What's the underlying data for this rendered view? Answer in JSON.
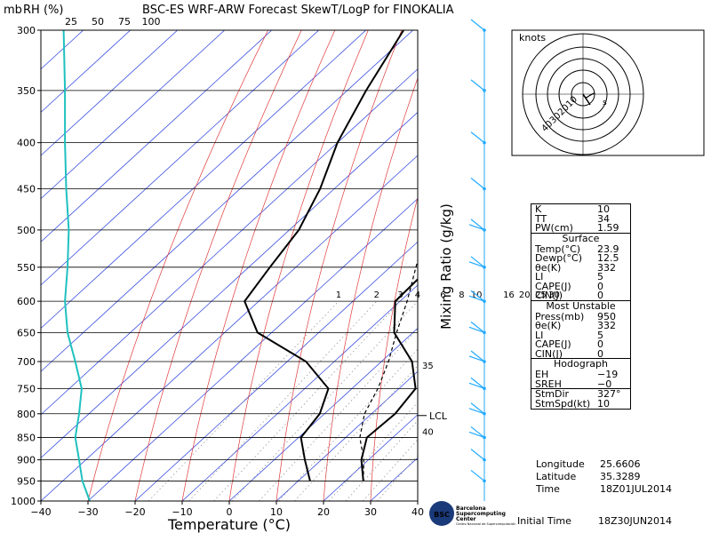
{
  "header": {
    "title": "BSC-ES WRF-ARW Forecast SkewT/LogP for FINOKALIA",
    "left_labels": [
      "mb",
      "RH (%)"
    ],
    "rh_ticks": [
      "25",
      "50",
      "75",
      "100"
    ]
  },
  "chart_data": {
    "type": "line",
    "title": "BSC-ES WRF-ARW Forecast SkewT/LogP for FINOKALIA",
    "xlabel": "Temperature (°C)",
    "ylabel": "mb",
    "xlim": [
      -40,
      40
    ],
    "ylim": [
      1000,
      300
    ],
    "x_ticks": [
      "-40",
      "-30",
      "-20",
      "-10",
      "0",
      "10",
      "20",
      "30",
      "40"
    ],
    "p_ticks": [
      "300",
      "350",
      "400",
      "450",
      "500",
      "550",
      "600",
      "650",
      "700",
      "750",
      "800",
      "850",
      "900",
      "950",
      "1000"
    ],
    "mixing_ratio_label": "Mixing Ratio (g/kg)",
    "mixing_ratio_labels": [
      "1",
      "2",
      "3",
      "4",
      "6",
      "8",
      "10",
      "16",
      "20",
      "25",
      "30"
    ],
    "lcl_label": "LCL",
    "theta_labels": [
      "35",
      "40"
    ],
    "series": [
      {
        "name": "Temperature",
        "color": "#000000",
        "p": [
          950,
          900,
          850,
          800,
          750,
          700,
          650,
          600,
          550,
          500,
          450,
          400,
          350,
          300
        ],
        "t": [
          23.8,
          18.5,
          14.5,
          15.0,
          13.5,
          6.5,
          -4.0,
          -11.0,
          -11.5,
          -13.5,
          -20.0,
          -29.0,
          -38.0,
          -45.5
        ]
      },
      {
        "name": "Dewpoint",
        "color": "#000000",
        "p": [
          950,
          900,
          850,
          800,
          750,
          700,
          650,
          600,
          550,
          500,
          450,
          400,
          350,
          300
        ],
        "t": [
          12.5,
          6.5,
          0.5,
          -1.0,
          -5.0,
          -16.0,
          -33.0,
          -43.0,
          -45.5,
          -48.0,
          -53.0,
          -60.0,
          -66.0,
          -72.0
        ]
      },
      {
        "name": "Parcel",
        "color": "#000000",
        "p": [
          950,
          900,
          850,
          800,
          750,
          700,
          650,
          600,
          550,
          500,
          450,
          400,
          350,
          300
        ],
        "t": [
          23.8,
          19.0,
          13.0,
          8.5,
          5.5,
          1.5,
          -3.5,
          -8.5,
          -14.5,
          -21.0,
          -29.0,
          -37.5,
          -48.0,
          -59.0
        ]
      },
      {
        "name": "RH",
        "color": "#20c0c0",
        "p": [
          950,
          900,
          850,
          800,
          750,
          700,
          650,
          600,
          550,
          500,
          450,
          400,
          350,
          300
        ],
        "rh": [
          45,
          40,
          34,
          40,
          44,
          34,
          22,
          18,
          22,
          24,
          20,
          18,
          18,
          16
        ]
      }
    ]
  },
  "wind_barbs": {
    "color": "#22aaff",
    "p": [
      300,
      350,
      400,
      450,
      500,
      550,
      600,
      650,
      700,
      750,
      800,
      850,
      900,
      950
    ]
  },
  "hodograph": {
    "label": "knots",
    "ring_labels": [
      "10",
      "20",
      "30",
      "40"
    ],
    "points": [
      [
        0,
        0
      ],
      [
        1,
        -2
      ],
      [
        3,
        -3
      ],
      [
        6,
        -1
      ],
      [
        10,
        1
      ]
    ],
    "arrow_label": "s"
  },
  "params": {
    "top": [
      [
        "K",
        "10"
      ],
      [
        "TT",
        "34"
      ],
      [
        "PW(cm)",
        "1.59"
      ]
    ],
    "surface_title": "Surface",
    "surface": [
      [
        "Temp(°C)",
        "23.9"
      ],
      [
        "Dewp(°C)",
        "12.5"
      ],
      [
        "θe(K)",
        "332"
      ],
      [
        "LI",
        "5"
      ],
      [
        "CAPE(J)",
        "0"
      ],
      [
        "CIN(J)",
        "0"
      ]
    ],
    "unstable_title": "Most Unstable",
    "unstable": [
      [
        "Press(mb)",
        "950"
      ],
      [
        "θe(K)",
        "332"
      ],
      [
        "LI",
        "5"
      ],
      [
        "CAPE(J)",
        "0"
      ],
      [
        "CIN(J)",
        "0"
      ]
    ],
    "hodo_title": "Hodograph",
    "hodo": [
      [
        "EH",
        "−19"
      ],
      [
        "SREH",
        "−0"
      ]
    ],
    "storm": [
      [
        "StmDir",
        "327°"
      ],
      [
        "StmSpd(kt)",
        "10"
      ]
    ]
  },
  "info": [
    [
      "Longitude",
      "25.6606"
    ],
    [
      "Latitude",
      "35.3289"
    ],
    [
      "Time",
      "18Z01JUL2014"
    ]
  ],
  "footer": {
    "logo_lines": [
      "Barcelona",
      "Supercomputing",
      "Center",
      "Centro Nacional de Supercomputación"
    ],
    "logo_badge": "BSC",
    "initial_label": "Initial Time",
    "initial_value": "18Z30JUN2014",
    "color": "#f5d878"
  }
}
